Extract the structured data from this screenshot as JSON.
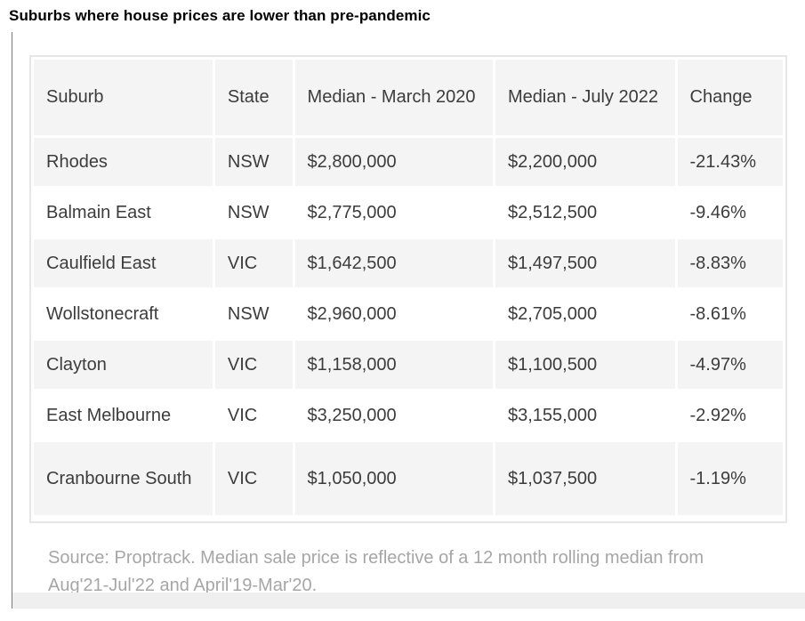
{
  "title": "Suburbs where house prices are lower than pre-pandemic",
  "table": {
    "headers": [
      "Suburb",
      "State",
      "Median - March 2020",
      "Median - July 2022",
      "Change"
    ],
    "rows": [
      [
        "Rhodes",
        "NSW",
        "$2,800,000",
        "$2,200,000",
        "-21.43%"
      ],
      [
        "Balmain East",
        "NSW",
        "$2,775,000",
        "$2,512,500",
        "-9.46%"
      ],
      [
        "Caulfield East",
        "VIC",
        "$1,642,500",
        "$1,497,500",
        "-8.83%"
      ],
      [
        "Wollstonecraft",
        "NSW",
        "$2,960,000",
        "$2,705,000",
        "-8.61%"
      ],
      [
        "Clayton",
        "VIC",
        "$1,158,000",
        "$1,100,500",
        "-4.97%"
      ],
      [
        "East Melbourne",
        "VIC",
        "$3,250,000",
        "$3,155,000",
        "-2.92%"
      ],
      [
        "Cranbourne South",
        "VIC",
        "$1,050,000",
        "$1,037,500",
        "-1.19%"
      ]
    ]
  },
  "source": "Source: Proptrack. Median sale price is reflective of a 12 month rolling median from Aug'21-Jul'22 and April'19-Mar'20."
}
